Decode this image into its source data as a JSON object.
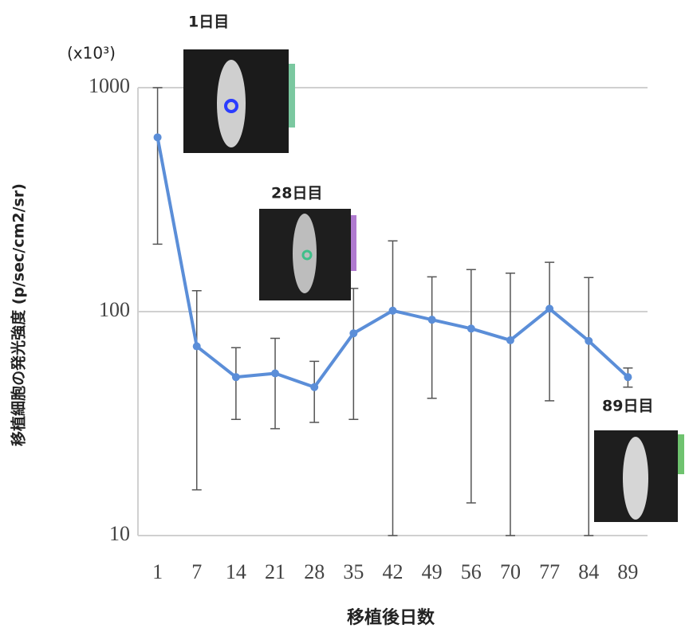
{
  "chart_data": {
    "type": "line",
    "log_y": true,
    "grid": true,
    "y_unit_label": "(x10³)",
    "y_label": "移植細胞の発光強度 (p/sec/cm2/sr)",
    "x_label": "移植後日数",
    "categories": [
      "1",
      "7",
      "14",
      "21",
      "28",
      "35",
      "42",
      "49",
      "56",
      "70",
      "77",
      "84",
      "89"
    ],
    "series": [
      {
        "color": "#5b8ed8",
        "values": [
          600,
          70,
          51,
          53,
          46,
          80,
          101,
          92,
          84,
          74.5,
          103,
          74,
          51
        ],
        "errors": [
          400,
          54,
          18,
          23,
          14,
          47,
          106,
          51,
          70,
          74,
          63,
          68,
          5
        ]
      }
    ],
    "ylim": [
      10,
      1000
    ],
    "yticks": [
      10,
      100,
      1000
    ],
    "annotations": [
      "1日目",
      "28日目",
      "89日目"
    ]
  }
}
